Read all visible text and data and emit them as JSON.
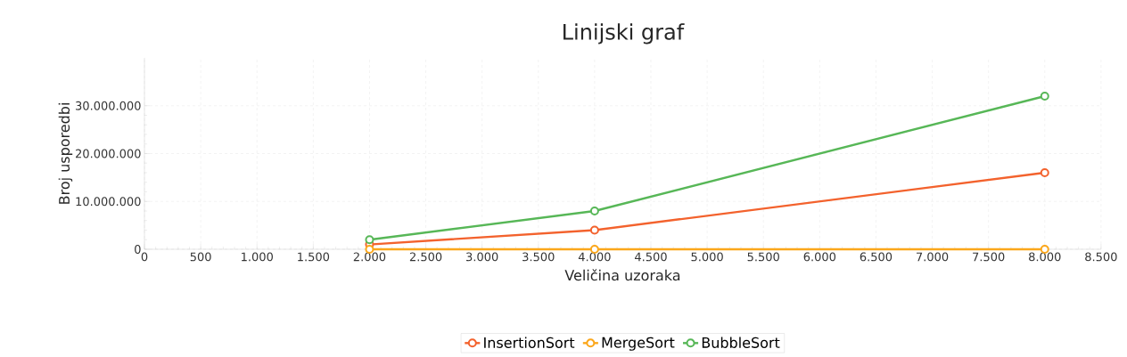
{
  "chart_data": {
    "type": "line",
    "title": "Linijski graf",
    "xlabel": "Veličina uzoraka",
    "ylabel": "Broj usporedbi",
    "x": [
      2000,
      4000,
      8000
    ],
    "series": [
      {
        "name": "InsertionSort",
        "color": "#f3622d",
        "values": [
          1000000,
          4000000,
          16000000
        ]
      },
      {
        "name": "MergeSort",
        "color": "#fba71b",
        "values": [
          0,
          0,
          0
        ]
      },
      {
        "name": "BubbleSort",
        "color": "#57b757",
        "values": [
          2000000,
          8000000,
          32000000
        ]
      }
    ],
    "xlim": [
      0,
      8500
    ],
    "ylim": [
      0,
      40000000
    ],
    "xticks": [
      0,
      {
        "value": 500,
        "label": "500"
      },
      {
        "value": 1000,
        "label": "1.000"
      },
      {
        "value": 1500,
        "label": "1.500"
      },
      {
        "value": 2000,
        "label": "2.000"
      },
      {
        "value": 2500,
        "label": "2.500"
      },
      {
        "value": 3000,
        "label": "3.000"
      },
      {
        "value": 3500,
        "label": "3.500"
      },
      {
        "value": 4000,
        "label": "4.000"
      },
      {
        "value": 4500,
        "label": "4.500"
      },
      {
        "value": 5000,
        "label": "5.000"
      },
      {
        "value": 5500,
        "label": "5.500"
      },
      {
        "value": 6000,
        "label": "6.000"
      },
      {
        "value": 6500,
        "label": "6.500"
      },
      {
        "value": 7000,
        "label": "7.000"
      },
      {
        "value": 7500,
        "label": "7.500"
      },
      {
        "value": 8000,
        "label": "8.000"
      },
      {
        "value": 8500,
        "label": "8.500"
      }
    ],
    "yticks": [
      0,
      {
        "value": 10000000,
        "label": "10.000.000"
      },
      {
        "value": 20000000,
        "label": "20.000.000"
      },
      {
        "value": 30000000,
        "label": "30.000.000"
      }
    ],
    "grid": true,
    "legend": "bottom",
    "marker": "circle",
    "line_style": "solid"
  }
}
